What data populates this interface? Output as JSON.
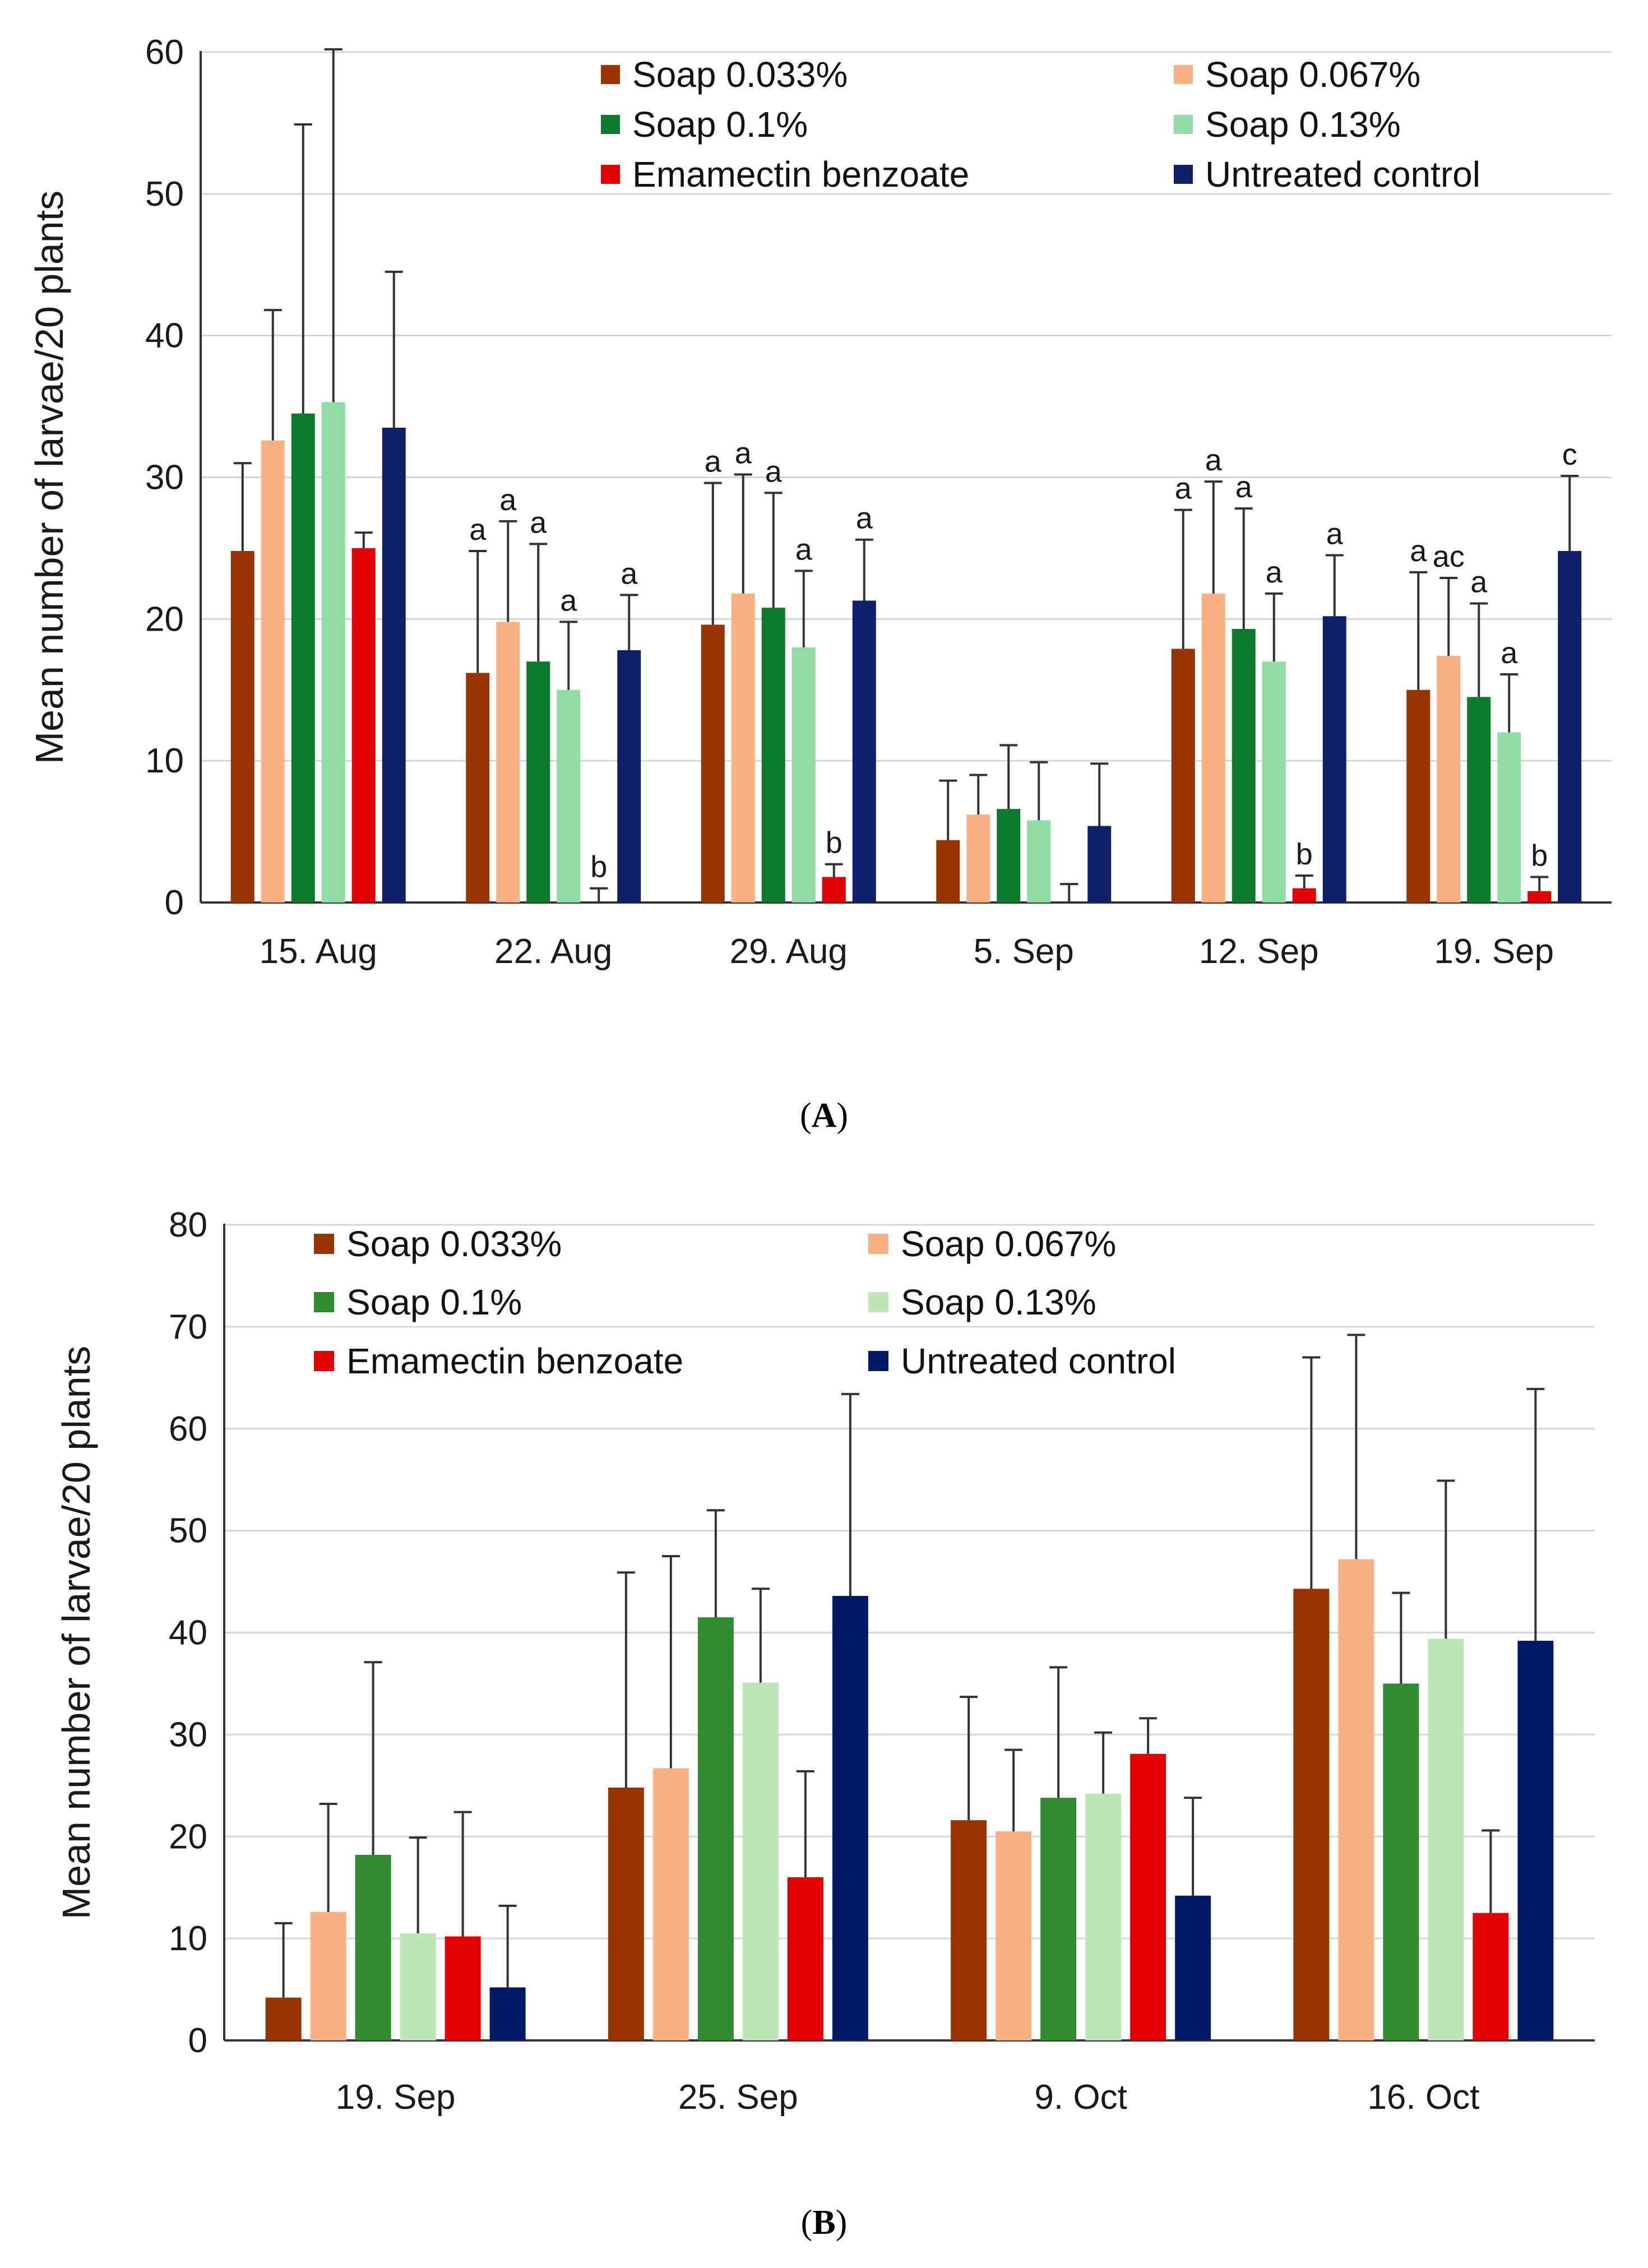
{
  "colors": {
    "Soap 0.033%": "#993300",
    "Soap 0.067%": "#f9b183",
    "Soap 0.1%": "#0b7a2a",
    "Soap 0.13%": "#8fdca5",
    "Emamectin benzoate": "#e40000",
    "Untreated control": "#0f1f6b"
  },
  "colors_b": {
    "Soap 0.033%": "#993300",
    "Soap 0.067%": "#f9b183",
    "Soap 0.1%": "#2e8b2e",
    "Soap 0.13%": "#bde5b8",
    "Emamectin benzoate": "#e40000",
    "Untreated control": "#001a66"
  },
  "chart_data": [
    {
      "type": "bar",
      "panel_label": "A",
      "ylabel": "Mean number of larvae/20 plants",
      "ylim": [
        0,
        60
      ],
      "yticks": [
        0,
        10,
        20,
        30,
        40,
        50,
        60
      ],
      "grid": true,
      "legend_position": "top-right",
      "categories": [
        "15. Aug",
        "22. Aug",
        "29. Aug",
        "5. Sep",
        "12. Sep",
        "19. Sep"
      ],
      "series": [
        {
          "name": "Soap 0.033%",
          "values": [
            24.8,
            16.2,
            19.6,
            4.4,
            17.9,
            15.0
          ],
          "errors": [
            6.2,
            8.6,
            10.0,
            4.2,
            9.8,
            8.3
          ]
        },
        {
          "name": "Soap 0.067%",
          "values": [
            32.6,
            19.8,
            21.8,
            6.2,
            21.8,
            17.4
          ],
          "errors": [
            9.2,
            7.1,
            8.4,
            2.8,
            7.9,
            5.5
          ]
        },
        {
          "name": "Soap 0.1%",
          "values": [
            34.5,
            17.0,
            20.8,
            6.6,
            19.3,
            14.5
          ],
          "errors": [
            20.4,
            8.3,
            8.1,
            4.5,
            8.5,
            6.6
          ]
        },
        {
          "name": "Soap 0.13%",
          "values": [
            35.3,
            15.0,
            18.0,
            5.8,
            17.0,
            12.0
          ],
          "errors": [
            24.9,
            4.8,
            5.4,
            4.1,
            4.8,
            4.1
          ]
        },
        {
          "name": "Emamectin benzoate",
          "values": [
            25.0,
            0.0,
            1.8,
            0.0,
            1.0,
            0.8
          ],
          "errors": [
            1.1,
            1.0,
            0.9,
            1.3,
            0.9,
            1.0
          ]
        },
        {
          "name": "Untreated control",
          "values": [
            33.5,
            17.8,
            21.3,
            5.4,
            20.2,
            24.8
          ],
          "errors": [
            11.0,
            3.9,
            4.3,
            4.4,
            4.3,
            5.3
          ]
        }
      ],
      "significance_letters": [
        [
          "",
          "",
          "",
          "",
          "",
          ""
        ],
        [
          "a",
          "a",
          "a",
          "a",
          "b",
          "a"
        ],
        [
          "a",
          "a",
          "a",
          "a",
          "b",
          "a"
        ],
        [
          "",
          "",
          "",
          "",
          "",
          ""
        ],
        [
          "a",
          "a",
          "a",
          "a",
          "b",
          "a"
        ],
        [
          "a",
          "ac",
          "a",
          "a",
          "b",
          "c"
        ]
      ]
    },
    {
      "type": "bar",
      "panel_label": "B",
      "ylabel": "Mean number of larvae/20 plants",
      "ylim": [
        0,
        80
      ],
      "yticks": [
        0,
        10,
        20,
        30,
        40,
        50,
        60,
        70,
        80
      ],
      "grid": true,
      "legend_position": "top-left",
      "categories": [
        "19. Sep",
        "25. Sep",
        "9. Oct",
        "16. Oct"
      ],
      "series": [
        {
          "name": "Soap 0.033%",
          "values": [
            4.2,
            24.8,
            21.6,
            44.3
          ],
          "errors": [
            7.3,
            21.1,
            12.1,
            22.7
          ]
        },
        {
          "name": "Soap 0.067%",
          "values": [
            12.6,
            26.7,
            20.5,
            47.2
          ],
          "errors": [
            10.6,
            20.8,
            8.0,
            22.0
          ]
        },
        {
          "name": "Soap 0.1%",
          "values": [
            18.2,
            41.5,
            23.8,
            35.0
          ],
          "errors": [
            18.9,
            10.5,
            12.8,
            8.9
          ]
        },
        {
          "name": "Soap 0.13%",
          "values": [
            10.5,
            35.1,
            24.2,
            39.4
          ],
          "errors": [
            9.4,
            9.2,
            6.0,
            15.5
          ]
        },
        {
          "name": "Emamectin benzoate",
          "values": [
            10.2,
            16.0,
            28.1,
            12.5
          ],
          "errors": [
            12.2,
            10.4,
            3.5,
            8.1
          ]
        },
        {
          "name": "Untreated control",
          "values": [
            5.2,
            43.6,
            14.2,
            39.2
          ],
          "errors": [
            8.0,
            19.8,
            9.6,
            24.7
          ]
        }
      ]
    }
  ]
}
